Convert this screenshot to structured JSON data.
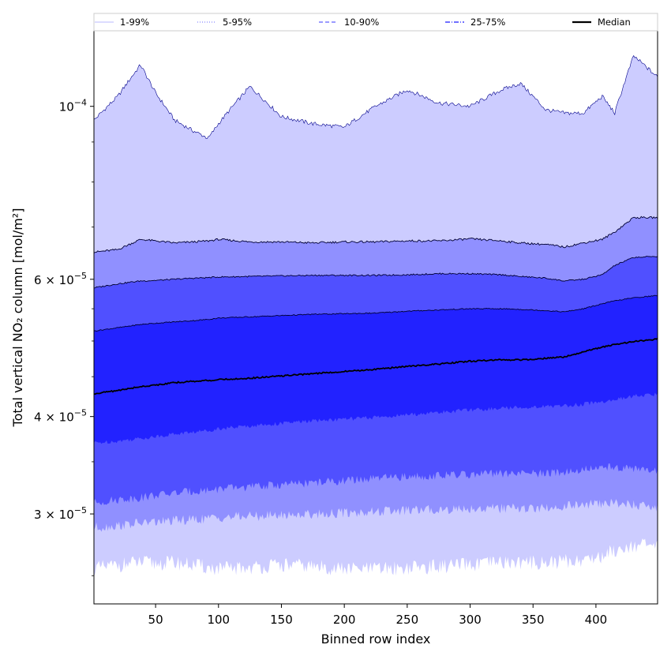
{
  "chart_data": {
    "type": "area",
    "xlabel": "Binned row index",
    "ylabel": "Total vertical NO₂ column [mol/m²]",
    "yscale": "log",
    "xlim": [
      1,
      449
    ],
    "ylim": [
      2.3e-05,
      0.000125
    ],
    "x_ticks": [
      50,
      100,
      150,
      200,
      250,
      300,
      350,
      400
    ],
    "y_ticks": [
      {
        "value": 0.0001,
        "base": "10",
        "exp": "−4"
      },
      {
        "value": 6e-05,
        "base": "6 × 10",
        "exp": "−5"
      },
      {
        "value": 4e-05,
        "base": "4 × 10",
        "exp": "−5"
      },
      {
        "value": 3e-05,
        "base": "3 × 10",
        "exp": "−5"
      }
    ],
    "y_minor_ticks": [
      2.5e-05,
      3.5e-05,
      4.5e-05,
      5e-05,
      5.5e-05,
      7e-05,
      8e-05,
      9e-05
    ],
    "legend": [
      {
        "label": "1-99%",
        "style": "solid",
        "color": "#d0d0ff"
      },
      {
        "label": "5-95%",
        "style": "dotted",
        "color": "#9c9cff"
      },
      {
        "label": "10-90%",
        "style": "dashed",
        "color": "#7a7aff"
      },
      {
        "label": "25-75%",
        "style": "dashdot",
        "color": "#4040ff"
      },
      {
        "label": "Median",
        "style": "solid",
        "color": "#000000"
      }
    ],
    "x": [
      1,
      20,
      38,
      50,
      65,
      80,
      92,
      100,
      125,
      150,
      175,
      200,
      225,
      250,
      275,
      300,
      325,
      340,
      360,
      375,
      390,
      405,
      415,
      430,
      449
    ],
    "series": [
      {
        "name": "p99",
        "color": "#ccccff",
        "values": [
          9.6e-05,
          0.000103,
          0.000113,
          0.000104,
          9.6e-05,
          9.3e-05,
          9.1e-05,
          9.5e-05,
          0.000106,
          9.7e-05,
          9.5e-05,
          9.4e-05,
          0.0001,
          0.000105,
          0.000101,
          0.0001,
          0.000105,
          0.000107,
          9.9e-05,
          9.8e-05,
          9.8e-05,
          0.000103,
          9.8e-05,
          0.000116,
          0.000109
        ]
      },
      {
        "name": "p95",
        "color": "#9090ff",
        "values": [
          6.5e-05,
          6.55e-05,
          6.75e-05,
          6.72e-05,
          6.68e-05,
          6.7e-05,
          6.72e-05,
          6.75e-05,
          6.7e-05,
          6.7e-05,
          6.68e-05,
          6.7e-05,
          6.7e-05,
          6.72e-05,
          6.72e-05,
          6.76e-05,
          6.72e-05,
          6.68e-05,
          6.65e-05,
          6.6e-05,
          6.68e-05,
          6.75e-05,
          6.9e-05,
          7.2e-05,
          7.2e-05
        ]
      },
      {
        "name": "p90",
        "color": "#5050ff",
        "values": [
          5.85e-05,
          5.92e-05,
          5.97e-05,
          5.98e-05,
          6e-05,
          6.02e-05,
          6.03e-05,
          6.04e-05,
          6.05e-05,
          6.06e-05,
          6.07e-05,
          6.07e-05,
          6.07e-05,
          6.08e-05,
          6.1e-05,
          6.1e-05,
          6.08e-05,
          6.05e-05,
          6.02e-05,
          5.97e-05,
          6e-05,
          6.08e-05,
          6.25e-05,
          6.4e-05,
          6.42e-05
        ]
      },
      {
        "name": "p75",
        "color": "#2222ff",
        "values": [
          5.15e-05,
          5.2e-05,
          5.25e-05,
          5.27e-05,
          5.29e-05,
          5.31e-05,
          5.33e-05,
          5.35e-05,
          5.37e-05,
          5.39e-05,
          5.41e-05,
          5.42e-05,
          5.43e-05,
          5.46e-05,
          5.48e-05,
          5.5e-05,
          5.5e-05,
          5.49e-05,
          5.47e-05,
          5.45e-05,
          5.5e-05,
          5.58e-05,
          5.63e-05,
          5.68e-05,
          5.72e-05
        ]
      },
      {
        "name": "p25",
        "color": "#5050ff",
        "values": [
          3.7e-05,
          3.72e-05,
          3.75e-05,
          3.77e-05,
          3.8e-05,
          3.82e-05,
          3.84e-05,
          3.86e-05,
          3.89e-05,
          3.92e-05,
          3.95e-05,
          3.97e-05,
          3.99e-05,
          4.02e-05,
          4.05e-05,
          4.08e-05,
          4.1e-05,
          4.11e-05,
          4.12e-05,
          4.13e-05,
          4.15e-05,
          4.18e-05,
          4.2e-05,
          4.25e-05,
          4.27e-05
        ]
      },
      {
        "name": "p10",
        "color": "#9090ff",
        "values": [
          3.1e-05,
          3.13e-05,
          3.15e-05,
          3.17e-05,
          3.19e-05,
          3.21e-05,
          3.22e-05,
          3.23e-05,
          3.25e-05,
          3.27e-05,
          3.29e-05,
          3.31e-05,
          3.33e-05,
          3.35e-05,
          3.36e-05,
          3.37e-05,
          3.38e-05,
          3.38e-05,
          3.38e-05,
          3.4e-05,
          3.42e-05,
          3.44e-05,
          3.45e-05,
          3.43e-05,
          3.4e-05
        ]
      },
      {
        "name": "p5",
        "color": "#ccccff",
        "values": [
          2.88e-05,
          2.9e-05,
          2.92e-05,
          2.93e-05,
          2.94e-05,
          2.95e-05,
          2.96e-05,
          2.97e-05,
          2.98e-05,
          2.99e-05,
          3e-05,
          3.01e-05,
          3.02e-05,
          3.03e-05,
          3.04e-05,
          3.05e-05,
          3.05e-05,
          3.05e-05,
          3.05e-05,
          3.07e-05,
          3.08e-05,
          3.09e-05,
          3.1e-05,
          3.08e-05,
          3.06e-05
        ]
      },
      {
        "name": "p1",
        "color": "#ffffff",
        "values": [
          2.55e-05,
          2.58e-05,
          2.6e-05,
          2.59e-05,
          2.6e-05,
          2.58e-05,
          2.56e-05,
          2.55e-05,
          2.56e-05,
          2.58e-05,
          2.57e-05,
          2.55e-05,
          2.55e-05,
          2.56e-05,
          2.57e-05,
          2.58e-05,
          2.6e-05,
          2.6e-05,
          2.6e-05,
          2.61e-05,
          2.62e-05,
          2.65e-05,
          2.7e-05,
          2.74e-05,
          2.72e-05
        ]
      },
      {
        "name": "Median",
        "color": "#000000",
        "values": [
          4.28e-05,
          4.32e-05,
          4.37e-05,
          4.39e-05,
          4.42e-05,
          4.44e-05,
          4.45e-05,
          4.46e-05,
          4.48e-05,
          4.51e-05,
          4.54e-05,
          4.57e-05,
          4.6e-05,
          4.64e-05,
          4.67e-05,
          4.71e-05,
          4.73e-05,
          4.73e-05,
          4.75e-05,
          4.77e-05,
          4.84e-05,
          4.91e-05,
          4.95e-05,
          4.99e-05,
          5.03e-05
        ]
      }
    ]
  }
}
